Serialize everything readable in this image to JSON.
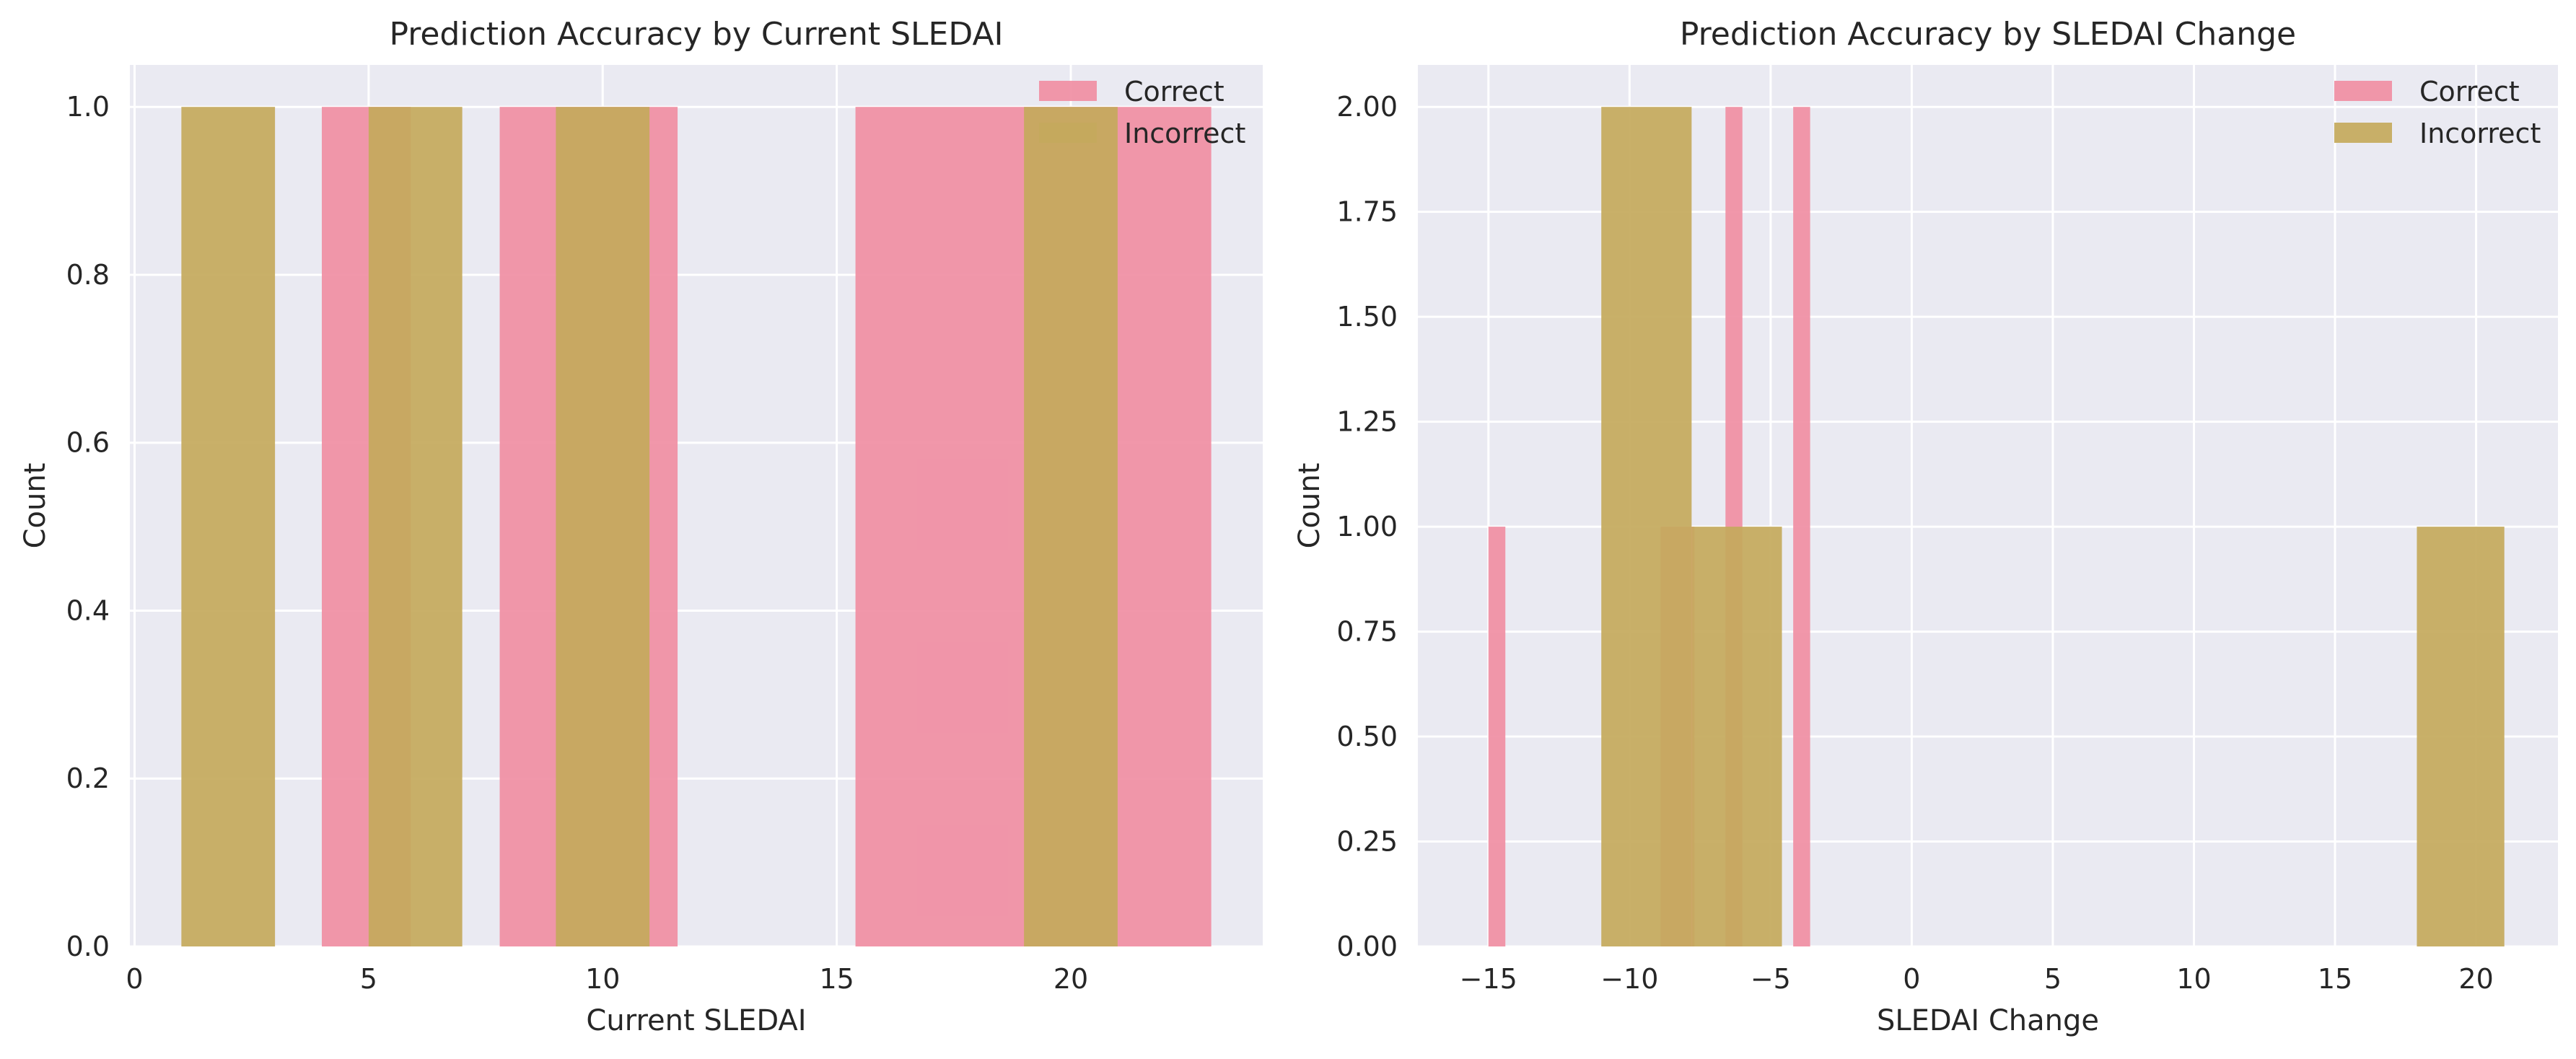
{
  "chart_data": [
    {
      "type": "histogram",
      "title": "Prediction Accuracy by Current SLEDAI",
      "xlabel": "Current SLEDAI",
      "ylabel": "Count",
      "xlim": [
        -0.1,
        24.1
      ],
      "ylim": [
        0,
        1.05
      ],
      "xticks": [
        0,
        5,
        10,
        15,
        20
      ],
      "yticks": [
        0.0,
        0.2,
        0.4,
        0.6,
        0.8,
        1.0
      ],
      "ytick_labels": [
        "0.0",
        "0.2",
        "0.4",
        "0.6",
        "0.8",
        "1.0"
      ],
      "grid": true,
      "legend_position": "top-right",
      "series": [
        {
          "name": "Correct",
          "color": "#f08ea3",
          "bins": [
            {
              "x0": 4.0,
              "x1": 5.9,
              "count": 1
            },
            {
              "x0": 7.8,
              "x1": 11.6,
              "count": 1
            },
            {
              "x0": 15.4,
              "x1": 23.0,
              "count": 1
            }
          ]
        },
        {
          "name": "Incorrect",
          "color": "#c4a95c",
          "bins": [
            {
              "x0": 1.0,
              "x1": 3.0,
              "count": 1
            },
            {
              "x0": 5.0,
              "x1": 7.0,
              "count": 1
            },
            {
              "x0": 9.0,
              "x1": 11.0,
              "count": 1
            },
            {
              "x0": 19.0,
              "x1": 21.0,
              "count": 1
            }
          ]
        }
      ]
    },
    {
      "type": "histogram",
      "title": "Prediction Accuracy by SLEDAI Change",
      "xlabel": "SLEDAI Change",
      "ylabel": "Count",
      "xlim": [
        -17.5,
        22.9
      ],
      "ylim": [
        0,
        2.1
      ],
      "xticks": [
        -15,
        -10,
        -5,
        0,
        5,
        10,
        15,
        20
      ],
      "xtick_labels": [
        "−15",
        "−10",
        "−5",
        "0",
        "5",
        "10",
        "15",
        "20"
      ],
      "yticks": [
        0.0,
        0.25,
        0.5,
        0.75,
        1.0,
        1.25,
        1.5,
        1.75,
        2.0
      ],
      "ytick_labels": [
        "0.00",
        "0.25",
        "0.50",
        "0.75",
        "1.00",
        "1.25",
        "1.50",
        "1.75",
        "2.00"
      ],
      "grid": true,
      "legend_position": "top-right",
      "series": [
        {
          "name": "Correct",
          "color": "#f08ea3",
          "bins": [
            {
              "x0": -15.0,
              "x1": -14.4,
              "count": 1
            },
            {
              "x0": -8.9,
              "x1": -7.7,
              "count": 1
            },
            {
              "x0": -6.6,
              "x1": -6.0,
              "count": 2
            },
            {
              "x0": -4.2,
              "x1": -3.6,
              "count": 2
            }
          ]
        },
        {
          "name": "Incorrect",
          "color": "#c4a95c",
          "bins": [
            {
              "x0": -11.0,
              "x1": -7.8,
              "count": 2
            },
            {
              "x0": -7.8,
              "x1": -4.6,
              "count": 1
            },
            {
              "x0": 17.9,
              "x1": 21.0,
              "count": 1
            }
          ]
        }
      ]
    }
  ]
}
